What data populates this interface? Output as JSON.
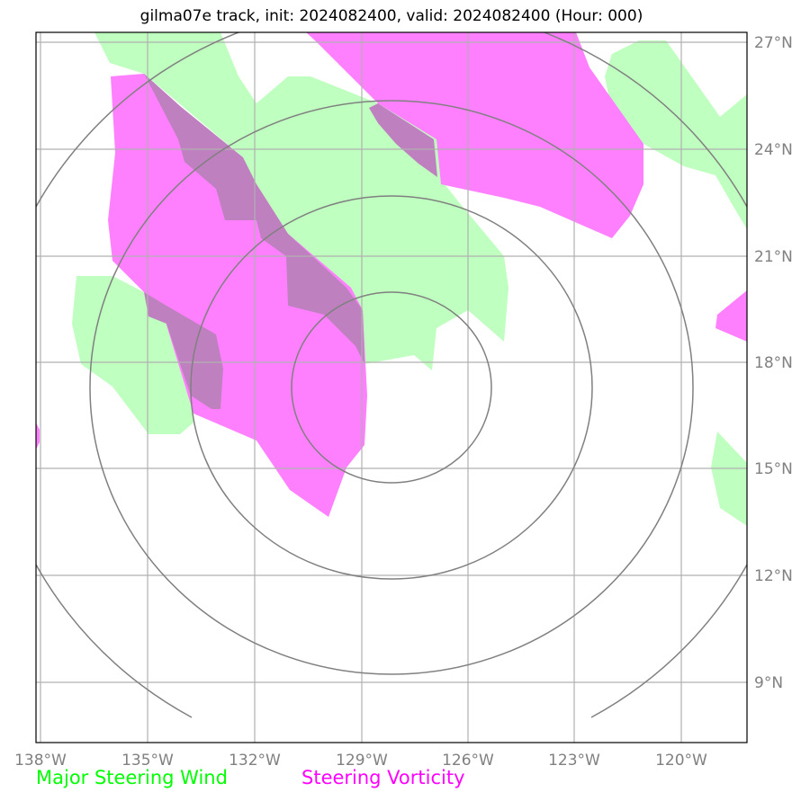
{
  "title": "gilma07e track, init: 2024082400, valid: 2024082400 (Hour: 000)",
  "longitude_labels": [
    "138°W",
    "135°W",
    "132°W",
    "129°W",
    "126°W",
    "123°W",
    "120°W"
  ],
  "latitude_labels": [
    "27°N",
    "24°N",
    "21°N",
    "18°N",
    "15°N",
    "12°N",
    "9°N"
  ],
  "legend": {
    "wind": {
      "label": "Major Steering Wind",
      "color": "#00ff00"
    },
    "vorticity": {
      "label": "Steering Vorticity",
      "color": "#ff00ff"
    }
  },
  "colors": {
    "wind_fill": "#bfffbf",
    "vorticity_fill": "#ff80ff",
    "overlap_fill": "#bf80bf",
    "range_rings": "#808080",
    "gridlines": "#b0b0b0"
  }
}
